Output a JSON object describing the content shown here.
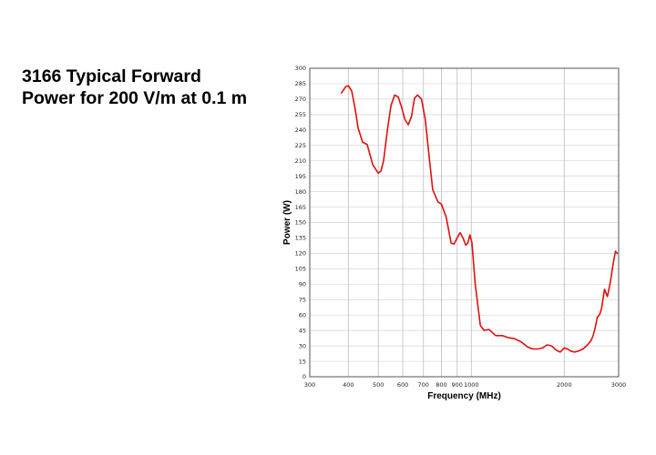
{
  "slide": {
    "title_line1": "3166 Typical Forward",
    "title_line2": "Power for 200 V/m at 0.1 m"
  },
  "chart_data": {
    "type": "line",
    "title": "",
    "xlabel": "Frequency (MHz)",
    "ylabel": "Power (W)",
    "xscale": "log",
    "xlim": [
      300,
      3000
    ],
    "ylim": [
      0,
      300
    ],
    "grid": true,
    "x_ticks": [
      300,
      400,
      500,
      600,
      700,
      800,
      900,
      1000,
      2000,
      3000
    ],
    "x_tick_labels": [
      "300",
      "400",
      "500",
      "600",
      "700",
      "800",
      "900",
      "1000",
      "2000",
      "3000"
    ],
    "y_ticks": [
      0,
      15,
      30,
      45,
      60,
      75,
      90,
      105,
      120,
      135,
      150,
      165,
      180,
      195,
      210,
      225,
      240,
      255,
      270,
      285,
      300
    ],
    "y_tick_labels": [
      "0",
      "15",
      "30",
      "45",
      "60",
      "75",
      "90",
      "105",
      "120",
      "135",
      "150",
      "165",
      "180",
      "195",
      "210",
      "225",
      "240",
      "255",
      "270",
      "285",
      "300"
    ],
    "line_color": "#e01010",
    "series": [
      {
        "x": [
          380,
          392,
          400,
          410,
          420,
          430,
          445,
          460,
          480,
          500,
          510,
          520,
          535,
          550,
          565,
          580,
          595,
          610,
          625,
          640,
          655,
          670,
          690,
          710,
          730,
          750,
          780,
          800,
          830,
          860,
          880,
          900,
          920,
          940,
          960,
          975,
          990,
          1005,
          1030,
          1070,
          1100,
          1140,
          1200,
          1260,
          1320,
          1380,
          1450,
          1520,
          1580,
          1640,
          1700,
          1760,
          1820,
          1880,
          1940,
          2000,
          2050,
          2100,
          2160,
          2220,
          2300,
          2380,
          2440,
          2480,
          2520,
          2560,
          2600,
          2640,
          2700,
          2760,
          2820,
          2880,
          2930,
          2970
        ],
        "y": [
          276,
          282,
          283,
          278,
          262,
          242,
          228,
          226,
          206,
          198,
          200,
          210,
          240,
          264,
          274,
          272,
          262,
          250,
          245,
          253,
          271,
          274,
          270,
          250,
          215,
          182,
          170,
          168,
          155,
          130,
          129,
          135,
          140,
          135,
          128,
          130,
          138,
          130,
          90,
          50,
          45,
          46,
          40,
          40,
          38,
          37,
          34,
          29,
          27,
          27,
          28,
          31,
          30,
          26,
          24,
          28,
          27,
          25,
          24,
          25,
          27,
          31,
          35,
          40,
          48,
          58,
          60,
          66,
          85,
          78,
          92,
          110,
          122,
          120
        ]
      }
    ]
  }
}
